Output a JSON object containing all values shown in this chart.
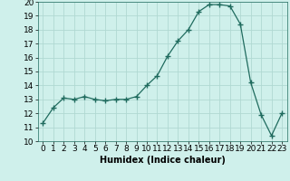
{
  "x": [
    0,
    1,
    2,
    3,
    4,
    5,
    6,
    7,
    8,
    9,
    10,
    11,
    12,
    13,
    14,
    15,
    16,
    17,
    18,
    19,
    20,
    21,
    22,
    23
  ],
  "y": [
    11.3,
    12.4,
    13.1,
    13.0,
    13.2,
    13.0,
    12.9,
    13.0,
    13.0,
    13.2,
    14.0,
    14.7,
    16.1,
    17.2,
    18.0,
    19.3,
    19.8,
    19.8,
    19.7,
    18.4,
    14.2,
    11.9,
    10.4,
    12.0
  ],
  "line_color": "#1f6b5e",
  "marker": "+",
  "marker_size": 4,
  "bg_color": "#cff0eb",
  "grid_color": "#b0d9d2",
  "xlabel": "Humidex (Indice chaleur)",
  "ylim": [
    10,
    20
  ],
  "xlim": [
    -0.5,
    23.5
  ],
  "yticks": [
    10,
    11,
    12,
    13,
    14,
    15,
    16,
    17,
    18,
    19,
    20
  ],
  "xticks": [
    0,
    1,
    2,
    3,
    4,
    5,
    6,
    7,
    8,
    9,
    10,
    11,
    12,
    13,
    14,
    15,
    16,
    17,
    18,
    19,
    20,
    21,
    22,
    23
  ],
  "xlabel_fontsize": 7,
  "tick_fontsize": 6.5
}
